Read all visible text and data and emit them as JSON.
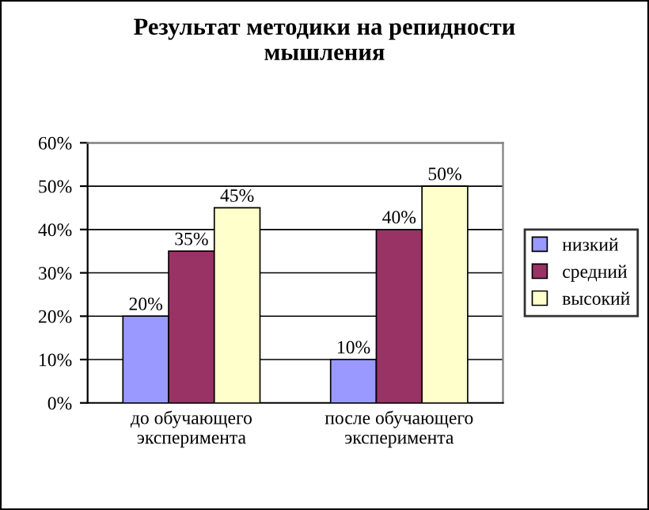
{
  "chart_data": {
    "type": "bar",
    "title": "Результат методики на репидности\nмышления",
    "categories": [
      "до обучающего\nэксперимента",
      "после обучающего\nэксперимента"
    ],
    "series": [
      {
        "name": "низкий",
        "color": "#9999ff",
        "values": [
          20,
          10
        ],
        "value_labels": [
          "20%",
          "10%"
        ]
      },
      {
        "name": "средний",
        "color": "#993366",
        "values": [
          35,
          40
        ],
        "value_labels": [
          "35%",
          "40%"
        ]
      },
      {
        "name": "высокий",
        "color": "#ffffcc",
        "values": [
          45,
          50
        ],
        "value_labels": [
          "45%",
          "50%"
        ]
      }
    ],
    "ylim": [
      0,
      60
    ],
    "yticks": [
      {
        "value": 0,
        "label": "0%"
      },
      {
        "value": 10,
        "label": "10%"
      },
      {
        "value": 20,
        "label": "20%"
      },
      {
        "value": 30,
        "label": "30%"
      },
      {
        "value": 40,
        "label": "40%"
      },
      {
        "value": 50,
        "label": "50%"
      },
      {
        "value": 60,
        "label": "60%"
      }
    ],
    "grid": "y",
    "legend": "right"
  }
}
